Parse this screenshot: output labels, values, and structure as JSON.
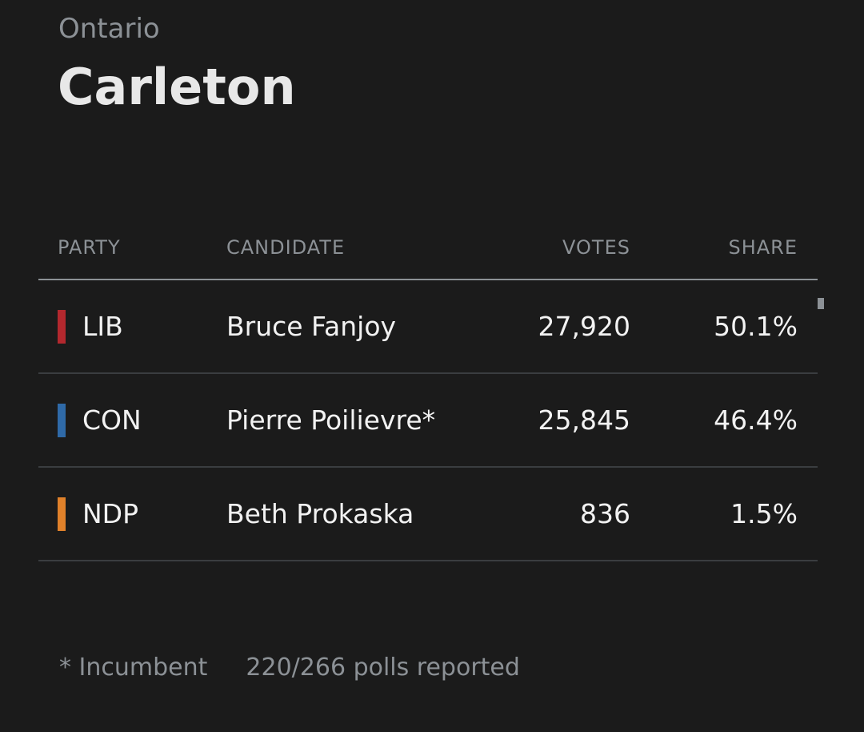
{
  "header": {
    "region": "Ontario",
    "title": "Carleton"
  },
  "table": {
    "columns": [
      "PARTY",
      "CANDIDATE",
      "VOTES",
      "SHARE"
    ],
    "rows": [
      {
        "party": "LIB",
        "color": "#b3282e",
        "candidate": "Bruce Fanjoy",
        "votes": "27,920",
        "share": "50.1%"
      },
      {
        "party": "CON",
        "color": "#2f6aa8",
        "candidate": "Pierre Poilievre*",
        "votes": "25,845",
        "share": "46.4%"
      },
      {
        "party": "NDP",
        "color": "#e0812a",
        "candidate": "Beth Prokaska",
        "votes": "836",
        "share": "1.5%"
      }
    ]
  },
  "footer": {
    "note": "* Incumbent",
    "polls": "220/266 polls reported"
  }
}
